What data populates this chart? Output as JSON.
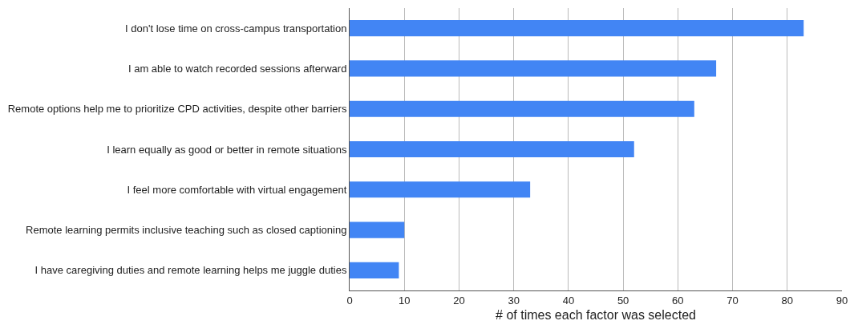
{
  "chart_data": {
    "type": "bar",
    "orientation": "horizontal",
    "xlabel": "# of times each factor was selected",
    "categories": [
      "I don't lose time on cross-campus transportation",
      "I am able to watch recorded sessions afterward",
      "Remote options help me to prioritize CPD activities, despite other barriers",
      "I learn equally as good or better in remote situations",
      "I feel more comfortable with virtual engagement",
      "Remote learning permits inclusive teaching such as closed captioning",
      "I have caregiving duties and remote learning helps me juggle duties"
    ],
    "values": [
      83,
      67,
      63,
      52,
      33,
      10,
      9
    ],
    "color": "#4285f4",
    "xlim": [
      0,
      90
    ],
    "xticks": [
      0,
      10,
      20,
      30,
      40,
      50,
      60,
      70,
      80,
      90
    ],
    "grid": "x",
    "legend": false
  }
}
